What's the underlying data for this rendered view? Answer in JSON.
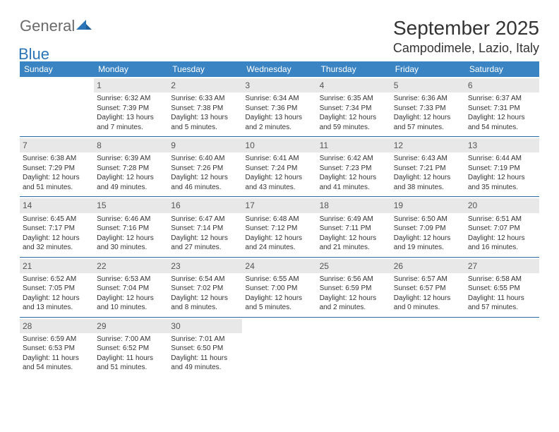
{
  "brand": {
    "part1": "General",
    "part2": "Blue"
  },
  "title": "September 2025",
  "location": "Campodimele, Lazio, Italy",
  "colors": {
    "header_bg": "#3b84c4",
    "row_divider": "#2b6aa5",
    "daynum_bg": "#e8e8e8",
    "text": "#333333",
    "logo_gray": "#6a6a6a",
    "logo_blue": "#2b74b8"
  },
  "weekdays": [
    "Sunday",
    "Monday",
    "Tuesday",
    "Wednesday",
    "Thursday",
    "Friday",
    "Saturday"
  ],
  "weeks": [
    [
      {
        "n": "",
        "sr": "",
        "ss": "",
        "dl": ""
      },
      {
        "n": "1",
        "sr": "Sunrise: 6:32 AM",
        "ss": "Sunset: 7:39 PM",
        "dl": "Daylight: 13 hours and 7 minutes."
      },
      {
        "n": "2",
        "sr": "Sunrise: 6:33 AM",
        "ss": "Sunset: 7:38 PM",
        "dl": "Daylight: 13 hours and 5 minutes."
      },
      {
        "n": "3",
        "sr": "Sunrise: 6:34 AM",
        "ss": "Sunset: 7:36 PM",
        "dl": "Daylight: 13 hours and 2 minutes."
      },
      {
        "n": "4",
        "sr": "Sunrise: 6:35 AM",
        "ss": "Sunset: 7:34 PM",
        "dl": "Daylight: 12 hours and 59 minutes."
      },
      {
        "n": "5",
        "sr": "Sunrise: 6:36 AM",
        "ss": "Sunset: 7:33 PM",
        "dl": "Daylight: 12 hours and 57 minutes."
      },
      {
        "n": "6",
        "sr": "Sunrise: 6:37 AM",
        "ss": "Sunset: 7:31 PM",
        "dl": "Daylight: 12 hours and 54 minutes."
      }
    ],
    [
      {
        "n": "7",
        "sr": "Sunrise: 6:38 AM",
        "ss": "Sunset: 7:29 PM",
        "dl": "Daylight: 12 hours and 51 minutes."
      },
      {
        "n": "8",
        "sr": "Sunrise: 6:39 AM",
        "ss": "Sunset: 7:28 PM",
        "dl": "Daylight: 12 hours and 49 minutes."
      },
      {
        "n": "9",
        "sr": "Sunrise: 6:40 AM",
        "ss": "Sunset: 7:26 PM",
        "dl": "Daylight: 12 hours and 46 minutes."
      },
      {
        "n": "10",
        "sr": "Sunrise: 6:41 AM",
        "ss": "Sunset: 7:24 PM",
        "dl": "Daylight: 12 hours and 43 minutes."
      },
      {
        "n": "11",
        "sr": "Sunrise: 6:42 AM",
        "ss": "Sunset: 7:23 PM",
        "dl": "Daylight: 12 hours and 41 minutes."
      },
      {
        "n": "12",
        "sr": "Sunrise: 6:43 AM",
        "ss": "Sunset: 7:21 PM",
        "dl": "Daylight: 12 hours and 38 minutes."
      },
      {
        "n": "13",
        "sr": "Sunrise: 6:44 AM",
        "ss": "Sunset: 7:19 PM",
        "dl": "Daylight: 12 hours and 35 minutes."
      }
    ],
    [
      {
        "n": "14",
        "sr": "Sunrise: 6:45 AM",
        "ss": "Sunset: 7:17 PM",
        "dl": "Daylight: 12 hours and 32 minutes."
      },
      {
        "n": "15",
        "sr": "Sunrise: 6:46 AM",
        "ss": "Sunset: 7:16 PM",
        "dl": "Daylight: 12 hours and 30 minutes."
      },
      {
        "n": "16",
        "sr": "Sunrise: 6:47 AM",
        "ss": "Sunset: 7:14 PM",
        "dl": "Daylight: 12 hours and 27 minutes."
      },
      {
        "n": "17",
        "sr": "Sunrise: 6:48 AM",
        "ss": "Sunset: 7:12 PM",
        "dl": "Daylight: 12 hours and 24 minutes."
      },
      {
        "n": "18",
        "sr": "Sunrise: 6:49 AM",
        "ss": "Sunset: 7:11 PM",
        "dl": "Daylight: 12 hours and 21 minutes."
      },
      {
        "n": "19",
        "sr": "Sunrise: 6:50 AM",
        "ss": "Sunset: 7:09 PM",
        "dl": "Daylight: 12 hours and 19 minutes."
      },
      {
        "n": "20",
        "sr": "Sunrise: 6:51 AM",
        "ss": "Sunset: 7:07 PM",
        "dl": "Daylight: 12 hours and 16 minutes."
      }
    ],
    [
      {
        "n": "21",
        "sr": "Sunrise: 6:52 AM",
        "ss": "Sunset: 7:05 PM",
        "dl": "Daylight: 12 hours and 13 minutes."
      },
      {
        "n": "22",
        "sr": "Sunrise: 6:53 AM",
        "ss": "Sunset: 7:04 PM",
        "dl": "Daylight: 12 hours and 10 minutes."
      },
      {
        "n": "23",
        "sr": "Sunrise: 6:54 AM",
        "ss": "Sunset: 7:02 PM",
        "dl": "Daylight: 12 hours and 8 minutes."
      },
      {
        "n": "24",
        "sr": "Sunrise: 6:55 AM",
        "ss": "Sunset: 7:00 PM",
        "dl": "Daylight: 12 hours and 5 minutes."
      },
      {
        "n": "25",
        "sr": "Sunrise: 6:56 AM",
        "ss": "Sunset: 6:59 PM",
        "dl": "Daylight: 12 hours and 2 minutes."
      },
      {
        "n": "26",
        "sr": "Sunrise: 6:57 AM",
        "ss": "Sunset: 6:57 PM",
        "dl": "Daylight: 12 hours and 0 minutes."
      },
      {
        "n": "27",
        "sr": "Sunrise: 6:58 AM",
        "ss": "Sunset: 6:55 PM",
        "dl": "Daylight: 11 hours and 57 minutes."
      }
    ],
    [
      {
        "n": "28",
        "sr": "Sunrise: 6:59 AM",
        "ss": "Sunset: 6:53 PM",
        "dl": "Daylight: 11 hours and 54 minutes."
      },
      {
        "n": "29",
        "sr": "Sunrise: 7:00 AM",
        "ss": "Sunset: 6:52 PM",
        "dl": "Daylight: 11 hours and 51 minutes."
      },
      {
        "n": "30",
        "sr": "Sunrise: 7:01 AM",
        "ss": "Sunset: 6:50 PM",
        "dl": "Daylight: 11 hours and 49 minutes."
      },
      {
        "n": "",
        "sr": "",
        "ss": "",
        "dl": ""
      },
      {
        "n": "",
        "sr": "",
        "ss": "",
        "dl": ""
      },
      {
        "n": "",
        "sr": "",
        "ss": "",
        "dl": ""
      },
      {
        "n": "",
        "sr": "",
        "ss": "",
        "dl": ""
      }
    ]
  ]
}
